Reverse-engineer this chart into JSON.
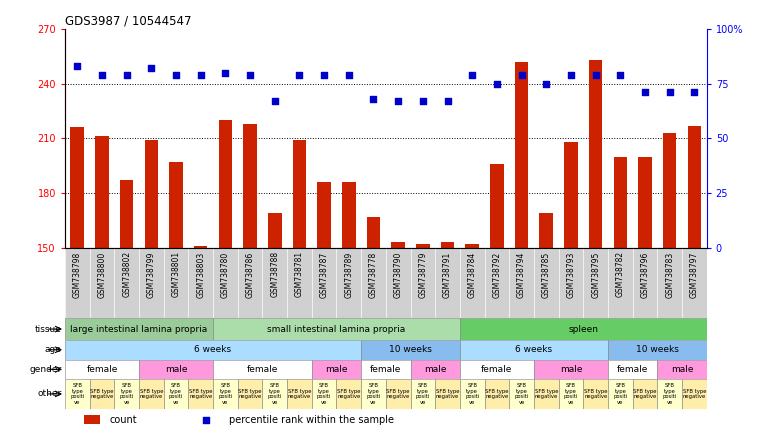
{
  "title": "GDS3987 / 10544547",
  "samples": [
    "GSM738798",
    "GSM738800",
    "GSM738802",
    "GSM738799",
    "GSM738801",
    "GSM738803",
    "GSM738780",
    "GSM738786",
    "GSM738788",
    "GSM738781",
    "GSM738787",
    "GSM738789",
    "GSM738778",
    "GSM738790",
    "GSM738779",
    "GSM738791",
    "GSM738784",
    "GSM738792",
    "GSM738794",
    "GSM738785",
    "GSM738793",
    "GSM738795",
    "GSM738782",
    "GSM738796",
    "GSM738783",
    "GSM738797"
  ],
  "counts": [
    216,
    211,
    187,
    209,
    197,
    151,
    220,
    218,
    169,
    209,
    186,
    186,
    167,
    153,
    152,
    153,
    152,
    196,
    252,
    169,
    208,
    253,
    200,
    200,
    213,
    217
  ],
  "percentiles": [
    83,
    79,
    79,
    82,
    79,
    79,
    80,
    79,
    67,
    79,
    79,
    79,
    68,
    67,
    67,
    67,
    79,
    75,
    79,
    75,
    79,
    79,
    79,
    71,
    71,
    71
  ],
  "ylim_left": [
    150,
    270
  ],
  "ylim_right": [
    0,
    100
  ],
  "yticks_left": [
    150,
    180,
    210,
    240,
    270
  ],
  "yticks_right": [
    0,
    25,
    50,
    75,
    100
  ],
  "bar_color": "#cc2200",
  "scatter_color": "#0000cc",
  "tissue_groups": [
    {
      "label": "large intestinal lamina propria",
      "start": 0,
      "end": 6,
      "color": "#99cc99"
    },
    {
      "label": "small intestinal lamina propria",
      "start": 6,
      "end": 16,
      "color": "#aaddaa"
    },
    {
      "label": "spleen",
      "start": 16,
      "end": 26,
      "color": "#66cc66"
    }
  ],
  "age_groups": [
    {
      "label": "6 weeks",
      "start": 0,
      "end": 12,
      "color": "#aaddff"
    },
    {
      "label": "10 weeks",
      "start": 12,
      "end": 16,
      "color": "#88bbee"
    },
    {
      "label": "6 weeks",
      "start": 16,
      "end": 22,
      "color": "#aaddff"
    },
    {
      "label": "10 weeks",
      "start": 22,
      "end": 26,
      "color": "#88bbee"
    }
  ],
  "gender_groups": [
    {
      "label": "female",
      "start": 0,
      "end": 3,
      "color": "#ffffff"
    },
    {
      "label": "male",
      "start": 3,
      "end": 6,
      "color": "#ff99dd"
    },
    {
      "label": "female",
      "start": 6,
      "end": 10,
      "color": "#ffffff"
    },
    {
      "label": "male",
      "start": 10,
      "end": 12,
      "color": "#ff99dd"
    },
    {
      "label": "female",
      "start": 12,
      "end": 14,
      "color": "#ffffff"
    },
    {
      "label": "male",
      "start": 14,
      "end": 16,
      "color": "#ff99dd"
    },
    {
      "label": "female",
      "start": 16,
      "end": 19,
      "color": "#ffffff"
    },
    {
      "label": "male",
      "start": 19,
      "end": 22,
      "color": "#ff99dd"
    },
    {
      "label": "female",
      "start": 22,
      "end": 24,
      "color": "#ffffff"
    },
    {
      "label": "male",
      "start": 24,
      "end": 26,
      "color": "#ff99dd"
    }
  ],
  "other_groups": [
    {
      "label": "SFB\ntype\npositi\nve",
      "start": 0,
      "end": 1,
      "color": "#ffffcc"
    },
    {
      "label": "SFB type\nnegative",
      "start": 1,
      "end": 2,
      "color": "#ffeeaa"
    },
    {
      "label": "SFB\ntype\npositi\nve",
      "start": 2,
      "end": 3,
      "color": "#ffffcc"
    },
    {
      "label": "SFB type\nnegative",
      "start": 3,
      "end": 4,
      "color": "#ffeeaa"
    },
    {
      "label": "SFB\ntype\npositi\nve",
      "start": 4,
      "end": 5,
      "color": "#ffffcc"
    },
    {
      "label": "SFB type\nnegative",
      "start": 5,
      "end": 6,
      "color": "#ffeeaa"
    },
    {
      "label": "SFB\ntype\npositi\nve",
      "start": 6,
      "end": 7,
      "color": "#ffffcc"
    },
    {
      "label": "SFB type\nnegative",
      "start": 7,
      "end": 8,
      "color": "#ffeeaa"
    },
    {
      "label": "SFB\ntype\npositi\nve",
      "start": 8,
      "end": 9,
      "color": "#ffffcc"
    },
    {
      "label": "SFB type\nnegative",
      "start": 9,
      "end": 10,
      "color": "#ffeeaa"
    },
    {
      "label": "SFB\ntype\npositi\nve",
      "start": 10,
      "end": 11,
      "color": "#ffffcc"
    },
    {
      "label": "SFB type\nnegative",
      "start": 11,
      "end": 12,
      "color": "#ffeeaa"
    },
    {
      "label": "SFB\ntype\npositi\nve",
      "start": 12,
      "end": 13,
      "color": "#ffffcc"
    },
    {
      "label": "SFB type\nnegative",
      "start": 13,
      "end": 14,
      "color": "#ffeeaa"
    },
    {
      "label": "SFB\ntype\npositi\nve",
      "start": 14,
      "end": 15,
      "color": "#ffffcc"
    },
    {
      "label": "SFB type\nnegative",
      "start": 15,
      "end": 16,
      "color": "#ffeeaa"
    },
    {
      "label": "SFB\ntype\npositi\nve",
      "start": 16,
      "end": 17,
      "color": "#ffffcc"
    },
    {
      "label": "SFB type\nnegative",
      "start": 17,
      "end": 18,
      "color": "#ffeeaa"
    },
    {
      "label": "SFB\ntype\npositi\nve",
      "start": 18,
      "end": 19,
      "color": "#ffffcc"
    },
    {
      "label": "SFB type\nnegative",
      "start": 19,
      "end": 20,
      "color": "#ffeeaa"
    },
    {
      "label": "SFB\ntype\npositi\nve",
      "start": 20,
      "end": 21,
      "color": "#ffffcc"
    },
    {
      "label": "SFB type\nnegative",
      "start": 21,
      "end": 22,
      "color": "#ffeeaa"
    },
    {
      "label": "SFB\ntype\npositi\nve",
      "start": 22,
      "end": 23,
      "color": "#ffffcc"
    },
    {
      "label": "SFB type\nnegative",
      "start": 23,
      "end": 24,
      "color": "#ffeeaa"
    },
    {
      "label": "SFB\ntype\npositi\nve",
      "start": 24,
      "end": 25,
      "color": "#ffffcc"
    },
    {
      "label": "SFB type\nnegative",
      "start": 25,
      "end": 26,
      "color": "#ffeeaa"
    }
  ],
  "xtick_bg_color": "#d0d0d0",
  "grid_color": "#000000",
  "grid_linestyle": ":",
  "grid_linewidth": 0.7
}
